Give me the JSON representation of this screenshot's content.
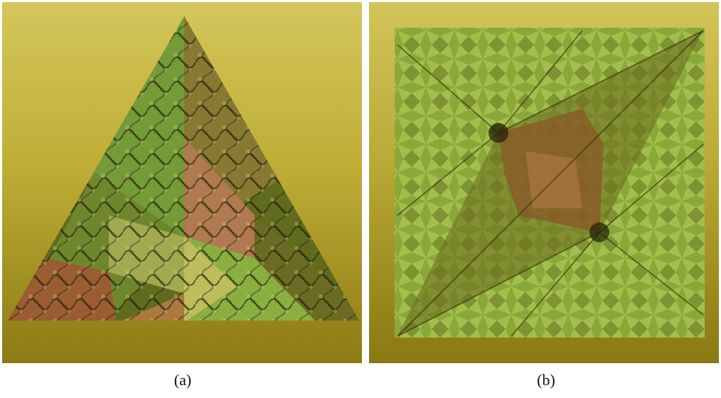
{
  "captions": {
    "a": "(a)",
    "b": "(b)"
  },
  "colors": {
    "background_top": "#d4c65c",
    "background_bottom": "#8c7a14",
    "green": "#7fb03a",
    "orange": "#c98a4a",
    "dark": "#2e2a08",
    "light_yellow": "#d8e070"
  }
}
